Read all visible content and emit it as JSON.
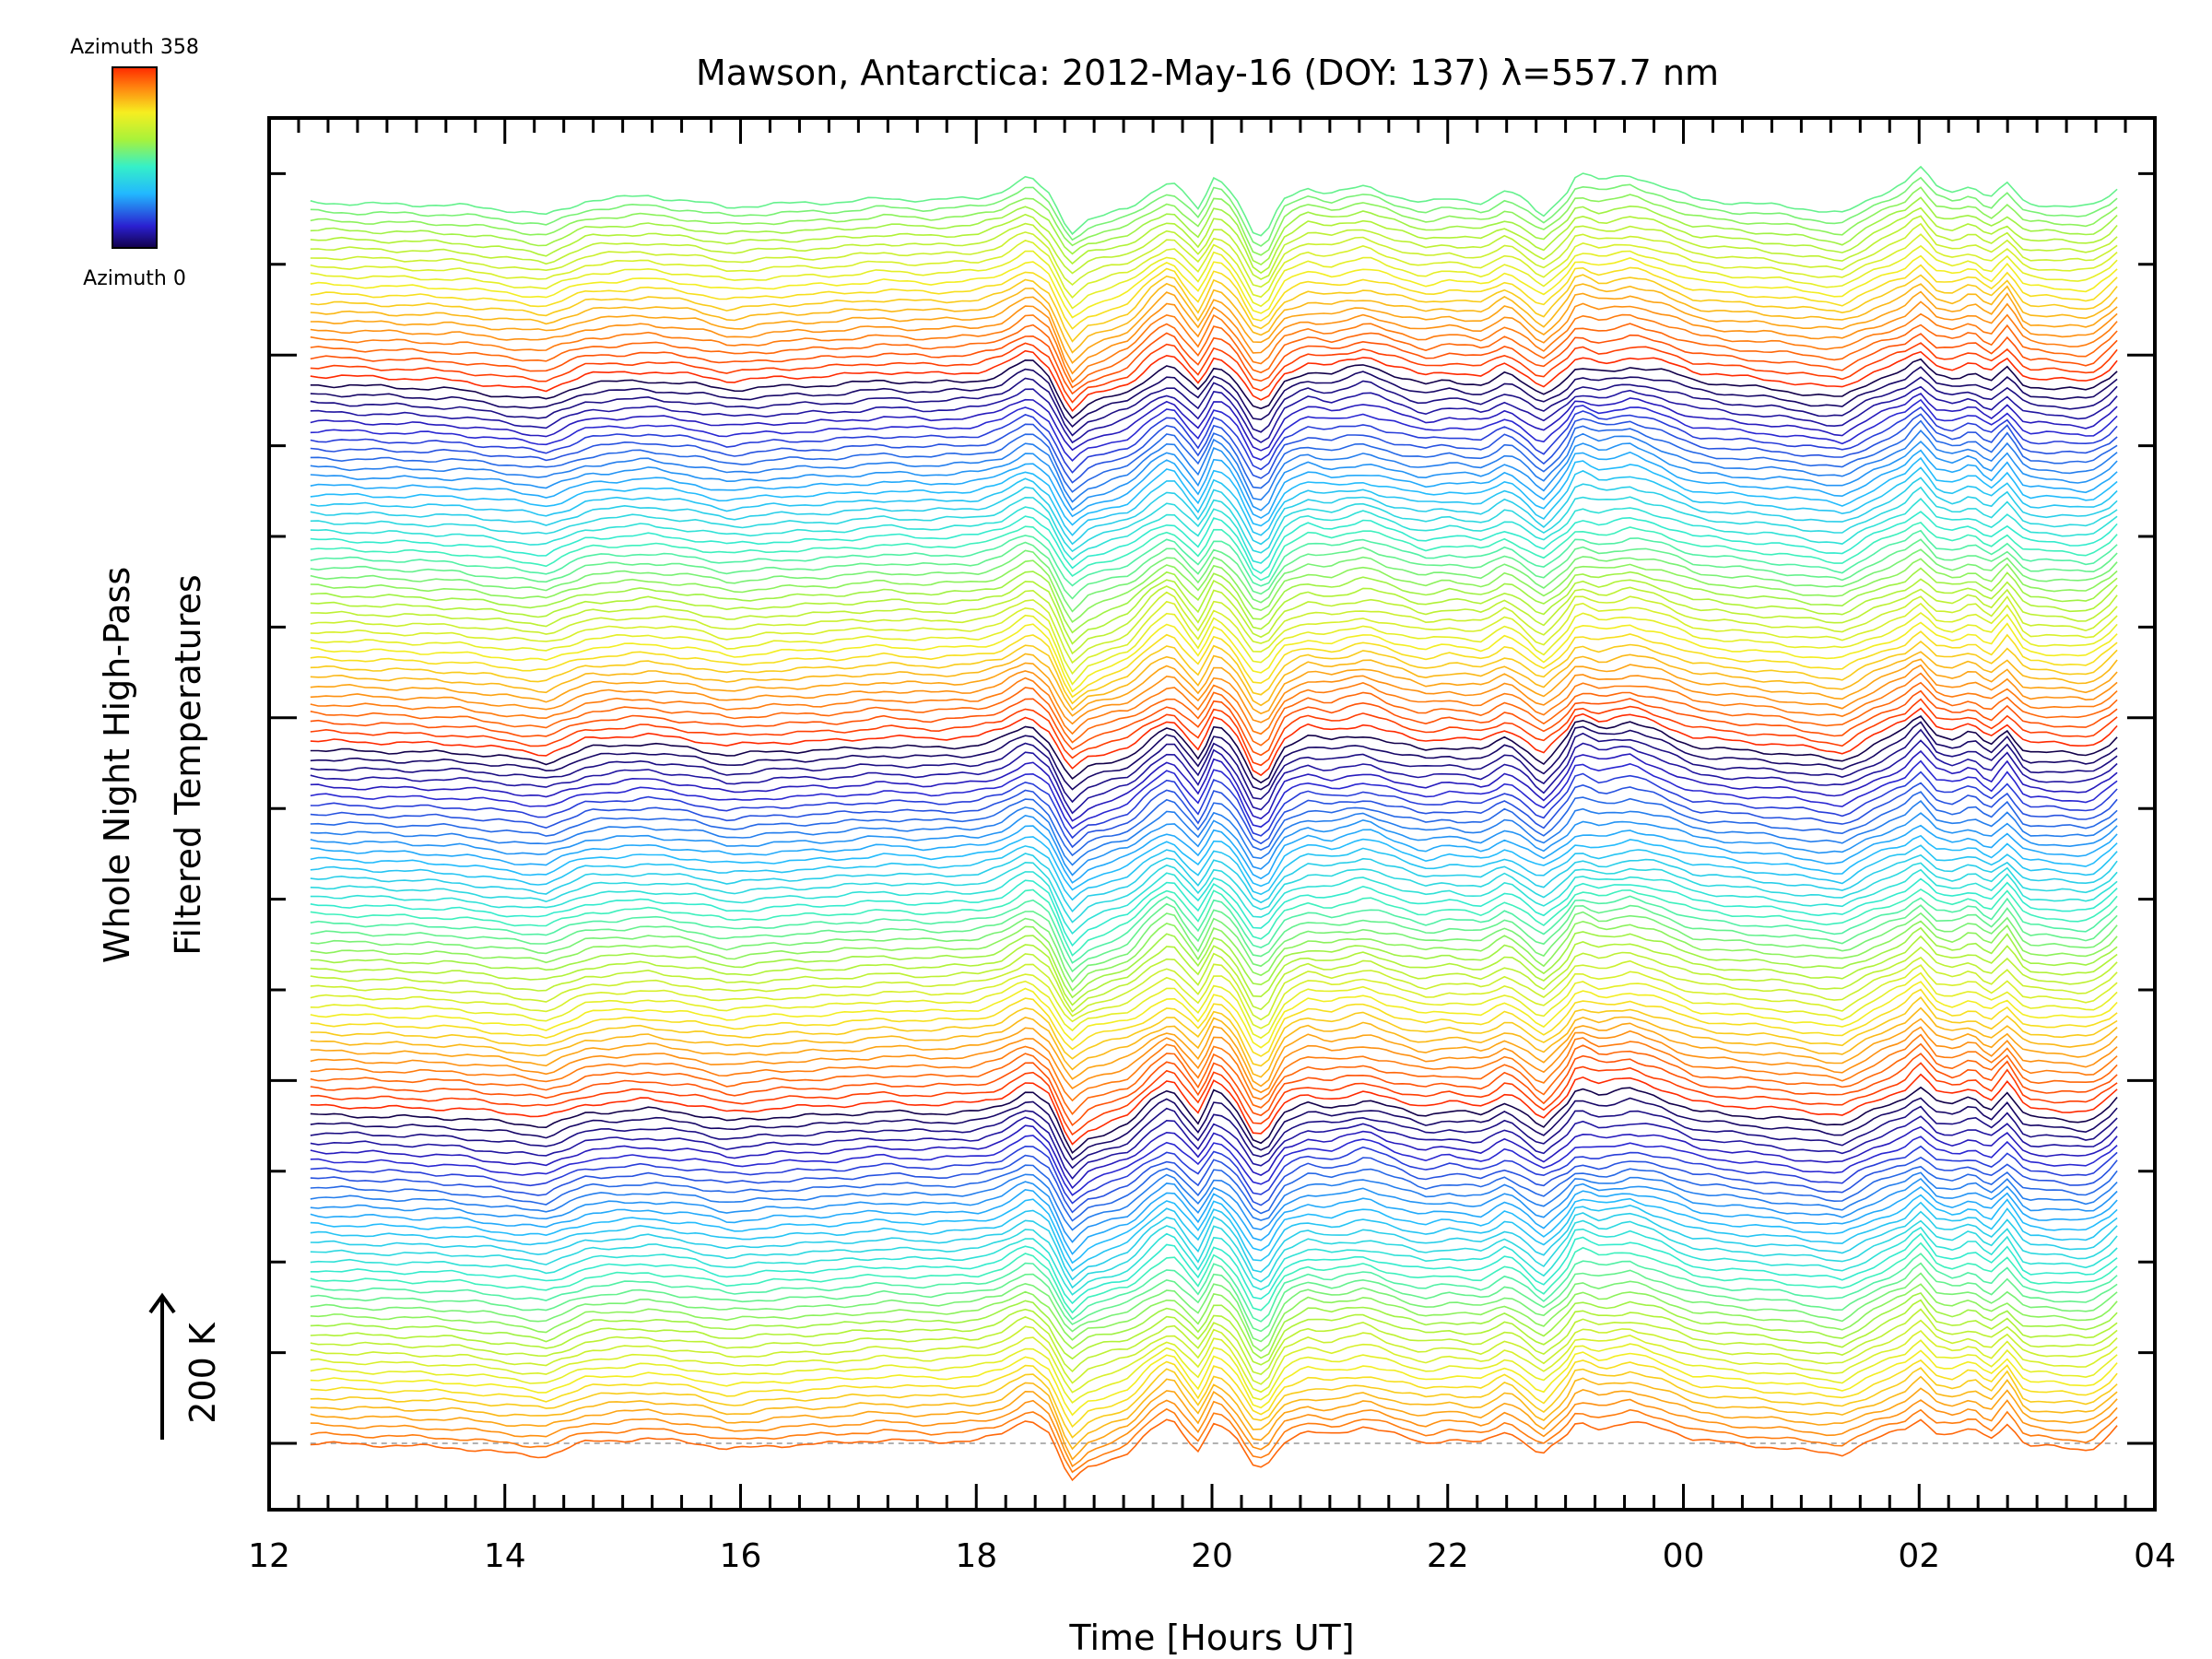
{
  "chart_data": {
    "type": "line",
    "title": "Mawson, Antarctica: 2012-May-16 (DOY: 137) λ=557.7 nm",
    "xlabel": "Time [Hours UT]",
    "ylabel_line1": "Whole Night High-Pass",
    "ylabel_line2": "Filtered Temperatures",
    "scale_label": "200 K",
    "colorbar": {
      "top_label": "Azimuth 358",
      "bottom_label": "Azimuth 0",
      "colormap": "rainbow"
    },
    "x_ticks": [
      "12",
      "14",
      "16",
      "18",
      "20",
      "22",
      "00",
      "02",
      "04"
    ],
    "xlim_hours_ut": [
      12,
      28
    ],
    "n_traces": 137,
    "trace_start_hour": 12.35,
    "trace_end_hour": 27.68,
    "baseline_dashed": true,
    "common_signal": [
      [
        12.35,
        0
      ],
      [
        13.0,
        -2
      ],
      [
        13.6,
        -4
      ],
      [
        14.35,
        -14
      ],
      [
        14.7,
        2
      ],
      [
        15.2,
        6
      ],
      [
        15.6,
        1
      ],
      [
        15.9,
        -6
      ],
      [
        16.3,
        -2
      ],
      [
        16.8,
        0
      ],
      [
        17.2,
        4
      ],
      [
        17.6,
        2
      ],
      [
        18.0,
        4
      ],
      [
        18.2,
        10
      ],
      [
        18.45,
        28
      ],
      [
        18.62,
        10
      ],
      [
        18.8,
        -38
      ],
      [
        18.95,
        -22
      ],
      [
        19.3,
        -8
      ],
      [
        19.5,
        14
      ],
      [
        19.65,
        26
      ],
      [
        19.8,
        4
      ],
      [
        19.9,
        -10
      ],
      [
        20.0,
        24
      ],
      [
        20.1,
        20
      ],
      [
        20.2,
        6
      ],
      [
        20.35,
        -28
      ],
      [
        20.45,
        -32
      ],
      [
        20.6,
        2
      ],
      [
        20.8,
        14
      ],
      [
        21.0,
        10
      ],
      [
        21.3,
        18
      ],
      [
        21.5,
        10
      ],
      [
        21.8,
        0
      ],
      [
        22.0,
        4
      ],
      [
        22.3,
        0
      ],
      [
        22.5,
        14
      ],
      [
        22.65,
        2
      ],
      [
        22.8,
        -14
      ],
      [
        23.0,
        8
      ],
      [
        23.1,
        28
      ],
      [
        23.3,
        20
      ],
      [
        23.55,
        26
      ],
      [
        23.8,
        18
      ],
      [
        24.1,
        4
      ],
      [
        24.4,
        0
      ],
      [
        24.8,
        -4
      ],
      [
        25.2,
        -10
      ],
      [
        25.35,
        -12
      ],
      [
        25.6,
        4
      ],
      [
        25.9,
        20
      ],
      [
        26.0,
        34
      ],
      [
        26.15,
        14
      ],
      [
        26.3,
        10
      ],
      [
        26.45,
        18
      ],
      [
        26.6,
        4
      ],
      [
        26.75,
        22
      ],
      [
        26.9,
        -2
      ],
      [
        27.2,
        -4
      ],
      [
        27.45,
        -6
      ],
      [
        27.6,
        6
      ],
      [
        27.68,
        16
      ]
    ]
  }
}
